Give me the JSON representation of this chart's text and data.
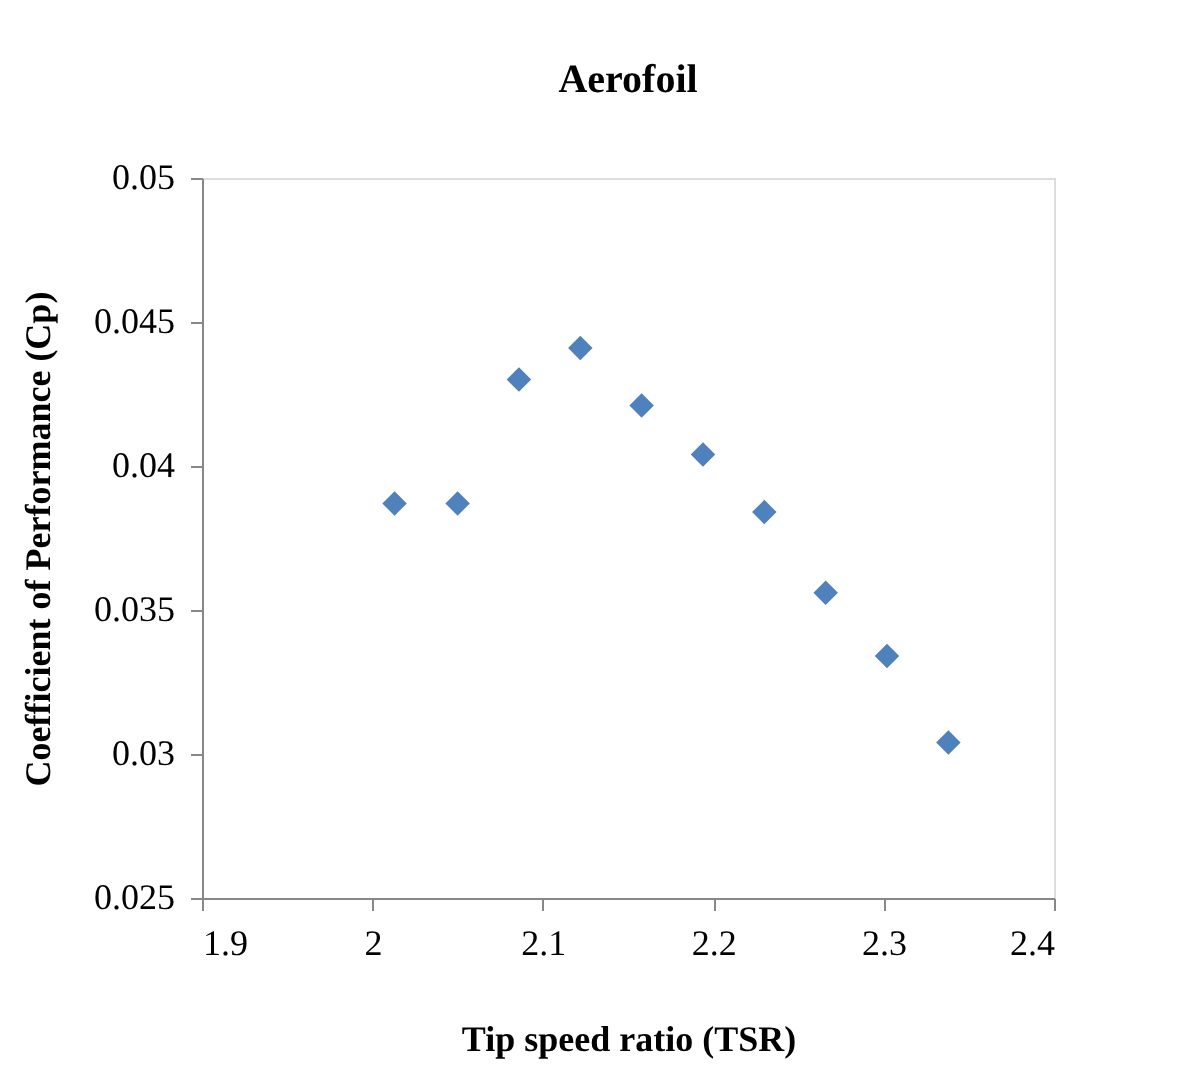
{
  "chart_data": {
    "type": "scatter",
    "title": "Aerofoil",
    "xlabel": "Tip speed ratio (TSR)",
    "ylabel": "Coefficient of Performance (Cp)",
    "x": [
      2.013,
      2.05,
      2.086,
      2.122,
      2.158,
      2.194,
      2.23,
      2.266,
      2.302,
      2.338
    ],
    "series": [
      {
        "color": "#4f81bd",
        "values": [
          0.0387,
          0.0387,
          0.043,
          0.0441,
          0.0421,
          0.0404,
          0.0384,
          0.0356,
          0.0334,
          0.0304
        ]
      }
    ],
    "xlim": [
      1.9,
      2.4
    ],
    "xticks": [
      1.9,
      2,
      2.1,
      2.2,
      2.3,
      2.4
    ],
    "ylim": [
      0.025,
      0.05
    ],
    "yticks": [
      0.025,
      0.03,
      0.035,
      0.04,
      0.045,
      0.05
    ],
    "grid": false,
    "legend": false,
    "marker": "diamond"
  }
}
